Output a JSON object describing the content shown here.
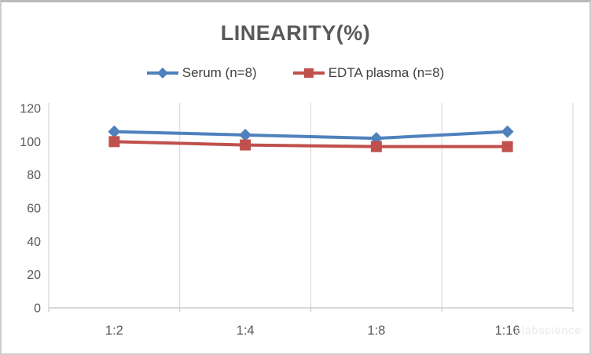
{
  "watermark": "elabscience",
  "colors": {
    "serum_series": "#4F81BD",
    "edta_series": "#C0504D",
    "title": "#595959",
    "axis_text": "#595959",
    "legend_text": "#404040",
    "gridline": "#D6D6D6",
    "axis_line": "#C2C2C2",
    "watermark": "#E7E7E7",
    "background": "#FFFFFF",
    "frame_border": "#CDCDCD"
  },
  "chart_data": {
    "type": "line",
    "title": "LINEARITY(%)",
    "categories": [
      "1:2",
      "1:4",
      "1:8",
      "1:16"
    ],
    "series": [
      {
        "name": "Serum (n=8)",
        "values": [
          106,
          104,
          102,
          106
        ],
        "color": "#4F81BD",
        "marker": "diamond"
      },
      {
        "name": "EDTA plasma (n=8)",
        "values": [
          100,
          98,
          97,
          97
        ],
        "color": "#C0504D",
        "marker": "square"
      }
    ],
    "xlabel": "",
    "ylabel": "",
    "ylim": [
      0,
      120
    ],
    "ytick_step": 20,
    "ytick_labels": [
      "0",
      "20",
      "40",
      "60",
      "80",
      "100",
      "120"
    ],
    "grid": "vertical-only",
    "legend_position": "top-center"
  }
}
